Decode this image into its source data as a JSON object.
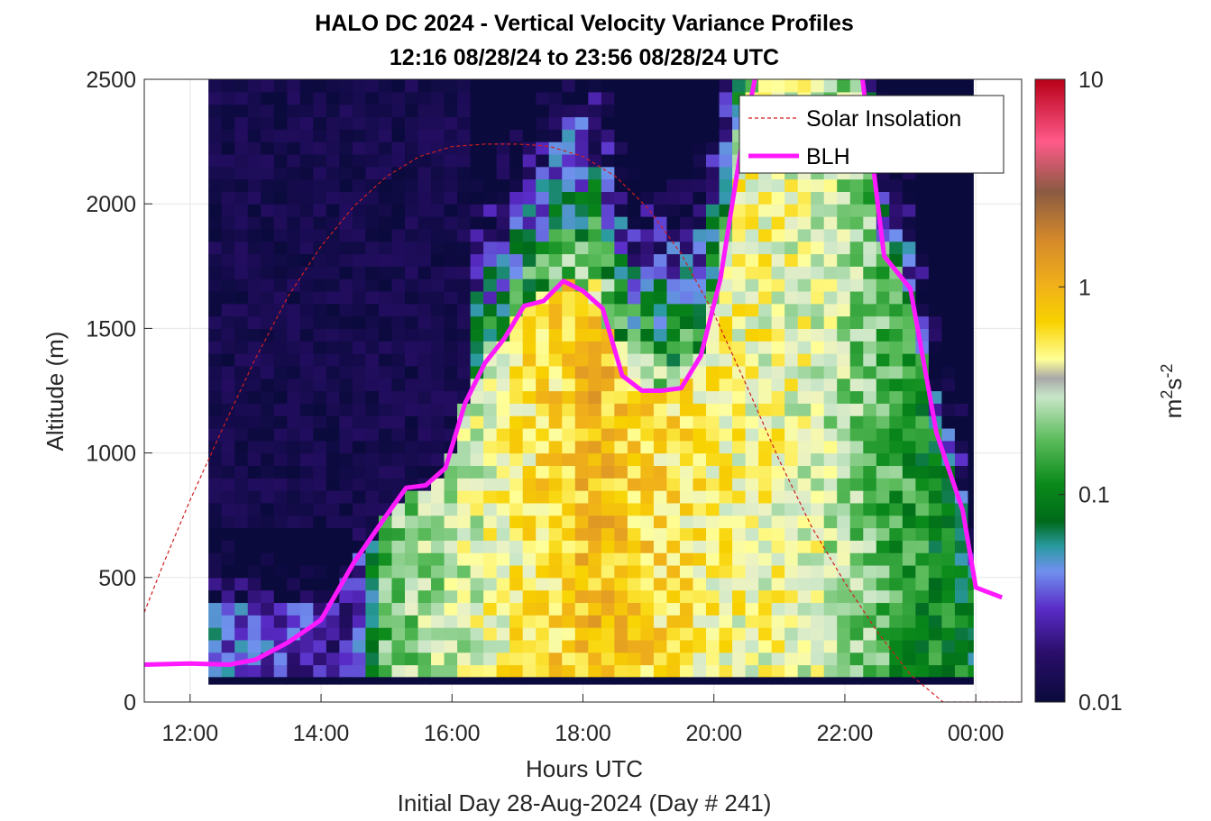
{
  "chart_data": {
    "type": "heatmap",
    "title": "HALO DC 2024 - Vertical Velocity Variance Profiles",
    "subtitle": "12:16 08/28/24 to 23:56 08/28/24  UTC",
    "xlabel": "Hours UTC",
    "xlabel2": "Initial Day 28-Aug-2024 (Day # 241)",
    "ylabel": "Altitude (m)",
    "colorbar_label": "m2s-2",
    "colorbar_label_parts": {
      "base": "m",
      "exp1": "2",
      "mid": "s",
      "exp2": "-2"
    },
    "xlim": [
      11.3,
      24.7
    ],
    "ylim": [
      0,
      2500
    ],
    "xticks": [
      12,
      14,
      16,
      18,
      20,
      22,
      24
    ],
    "xtick_labels": [
      "12:00",
      "14:00",
      "16:00",
      "18:00",
      "20:00",
      "22:00",
      "00:00"
    ],
    "yticks": [
      0,
      500,
      1000,
      1500,
      2000,
      2500
    ],
    "ytick_labels": [
      "0",
      "500",
      "1000",
      "1500",
      "2000",
      "2500"
    ],
    "colorbar": {
      "scale": "log",
      "range": [
        0.01,
        10
      ],
      "ticks": [
        0.01,
        0.1,
        1,
        10
      ],
      "tick_labels": [
        "0.01",
        "0.1",
        "1",
        "10"
      ]
    },
    "grid": true,
    "legend": {
      "position": "top-right",
      "entries": [
        {
          "label": "Solar Insolation",
          "style": "dashed",
          "color": "#d21e1e"
        },
        {
          "label": "BLH",
          "style": "solid",
          "color": "#ff19ff"
        }
      ]
    },
    "heatmap": {
      "x_start": 12.28,
      "x_end": 23.96,
      "bin_hours": 0.2,
      "y_start": 100,
      "y_end": 2500,
      "bin_m": 50,
      "surface_row_log10": -2,
      "base_profile": [
        {
          "h": 12.3,
          "log10": -1.4
        },
        {
          "h": 13.3,
          "log10": -1.55
        },
        {
          "h": 14.5,
          "log10": -1.7
        },
        {
          "h": 15.0,
          "log10": -0.7
        },
        {
          "h": 16.0,
          "log10": -0.55
        },
        {
          "h": 18.2,
          "log10": -0.05
        },
        {
          "h": 20.0,
          "log10": -0.35
        },
        {
          "h": 21.5,
          "log10": -0.45
        },
        {
          "h": 23.0,
          "log10": -0.9
        },
        {
          "h": 24.0,
          "log10": -1.1
        }
      ]
    },
    "series": [
      {
        "name": "BLH",
        "color": "#ff19ff",
        "x": [
          11.3,
          12.0,
          12.6,
          13.0,
          13.5,
          14.0,
          14.5,
          15.0,
          15.3,
          15.6,
          15.9,
          16.2,
          16.5,
          16.8,
          17.1,
          17.4,
          17.7,
          18.0,
          18.3,
          18.6,
          18.9,
          19.2,
          19.5,
          19.8,
          20.1,
          20.4,
          20.7,
          21.0,
          21.2,
          22.2,
          22.6,
          23.0,
          23.4,
          23.8,
          24.0,
          24.4
        ],
        "y": [
          150,
          155,
          150,
          170,
          240,
          330,
          560,
          750,
          860,
          870,
          940,
          1200,
          1360,
          1460,
          1590,
          1610,
          1690,
          1650,
          1580,
          1310,
          1250,
          1250,
          1260,
          1390,
          1700,
          2200,
          2600,
          2650,
          2650,
          2650,
          1790,
          1660,
          1080,
          770,
          460,
          420
        ]
      },
      {
        "name": "Solar Insolation",
        "color": "#d21e1e",
        "x": [
          11.3,
          11.6,
          12.0,
          12.5,
          13.0,
          13.5,
          14.0,
          14.5,
          15.0,
          15.5,
          16.0,
          16.5,
          17.0,
          17.3,
          17.5,
          18.0,
          18.5,
          19.0,
          19.5,
          20.0,
          20.5,
          21.0,
          21.5,
          22.0,
          22.5,
          23.0,
          23.5,
          23.75,
          24.7
        ],
        "y": [
          360,
          560,
          810,
          1100,
          1380,
          1630,
          1830,
          1990,
          2110,
          2190,
          2230,
          2240,
          2240,
          2235,
          2230,
          2190,
          2110,
          1980,
          1800,
          1560,
          1270,
          970,
          700,
          480,
          280,
          110,
          0,
          0,
          0
        ]
      }
    ]
  }
}
